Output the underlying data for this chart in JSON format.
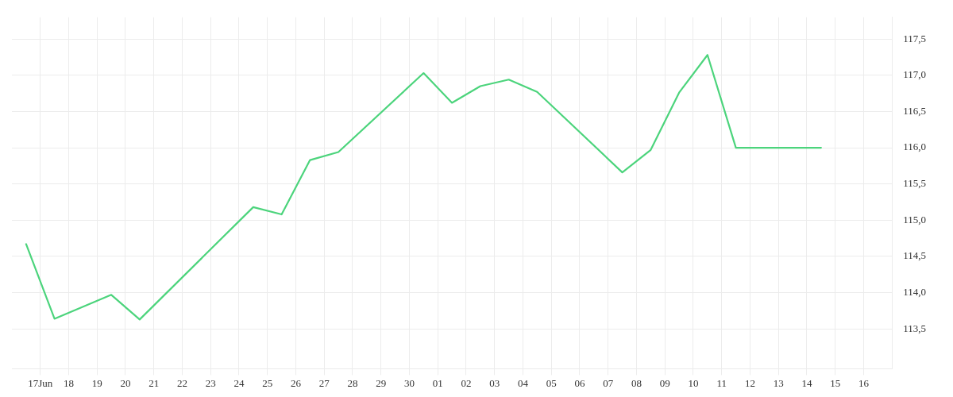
{
  "chart_data": {
    "type": "line",
    "x": [
      "--06-16T12:00",
      "--06-17T12:00",
      "--06-19T12:00",
      "--06-20T12:00",
      "--06-24T12:00",
      "--06-25T12:00",
      "--06-26T12:00",
      "--06-27T12:00",
      "--06-30T12:00",
      "--07-01T12:00",
      "--07-02T12:00",
      "--07-03T12:00",
      "--07-04T12:00",
      "--07-07T12:00",
      "--07-08T12:00",
      "--07-09T12:00",
      "--07-10T12:00",
      "--07-11T12:00",
      "--07-14T12:00"
    ],
    "series": [
      {
        "color": "#4cd47c",
        "values": [
          114.67,
          113.64,
          113.97,
          113.63,
          115.18,
          115.08,
          115.83,
          115.94,
          117.03,
          116.62,
          116.85,
          116.94,
          116.77,
          115.66,
          115.97,
          116.76,
          117.28,
          116.0,
          116.0
        ]
      }
    ],
    "xlim": [
      "--06-16",
      "--07-17"
    ],
    "xticks": [
      {
        "value": "--06-17",
        "label": "17Jun"
      },
      {
        "value": "--06-18",
        "label": "18"
      },
      {
        "value": "--06-19",
        "label": "19"
      },
      {
        "value": "--06-20",
        "label": "20"
      },
      {
        "value": "--06-21",
        "label": "21"
      },
      {
        "value": "--06-22",
        "label": "22"
      },
      {
        "value": "--06-23",
        "label": "23"
      },
      {
        "value": "--06-24",
        "label": "24"
      },
      {
        "value": "--06-25",
        "label": "25"
      },
      {
        "value": "--06-26",
        "label": "26"
      },
      {
        "value": "--06-27",
        "label": "27"
      },
      {
        "value": "--06-28",
        "label": "28"
      },
      {
        "value": "--06-29",
        "label": "29"
      },
      {
        "value": "--06-30",
        "label": "30"
      },
      {
        "value": "--07-01",
        "label": "01"
      },
      {
        "value": "--07-02",
        "label": "02"
      },
      {
        "value": "--07-03",
        "label": "03"
      },
      {
        "value": "--07-04",
        "label": "04"
      },
      {
        "value": "--07-05",
        "label": "05"
      },
      {
        "value": "--07-06",
        "label": "06"
      },
      {
        "value": "--07-07",
        "label": "07"
      },
      {
        "value": "--07-08",
        "label": "08"
      },
      {
        "value": "--07-09",
        "label": "09"
      },
      {
        "value": "--07-10",
        "label": "10"
      },
      {
        "value": "--07-11",
        "label": "11"
      },
      {
        "value": "--07-12",
        "label": "12"
      },
      {
        "value": "--07-13",
        "label": "13"
      },
      {
        "value": "--07-14",
        "label": "14"
      },
      {
        "value": "--07-15",
        "label": "15"
      },
      {
        "value": "--07-16",
        "label": "16"
      }
    ],
    "ylim": [
      112.95,
      117.8
    ],
    "yticks": [
      {
        "value": 113.5,
        "label": "113,5"
      },
      {
        "value": 114,
        "label": "114,0"
      },
      {
        "value": 114.5,
        "label": "114,5"
      },
      {
        "value": 115,
        "label": "115,0"
      },
      {
        "value": 115.5,
        "label": "115,5"
      },
      {
        "value": 116,
        "label": "116,0"
      },
      {
        "value": 116.5,
        "label": "116,5"
      },
      {
        "value": 117,
        "label": "117,0"
      },
      {
        "value": 117.5,
        "label": "117,5"
      }
    ],
    "grid": true,
    "legend": false,
    "marker": "none",
    "line_style": "solid"
  }
}
